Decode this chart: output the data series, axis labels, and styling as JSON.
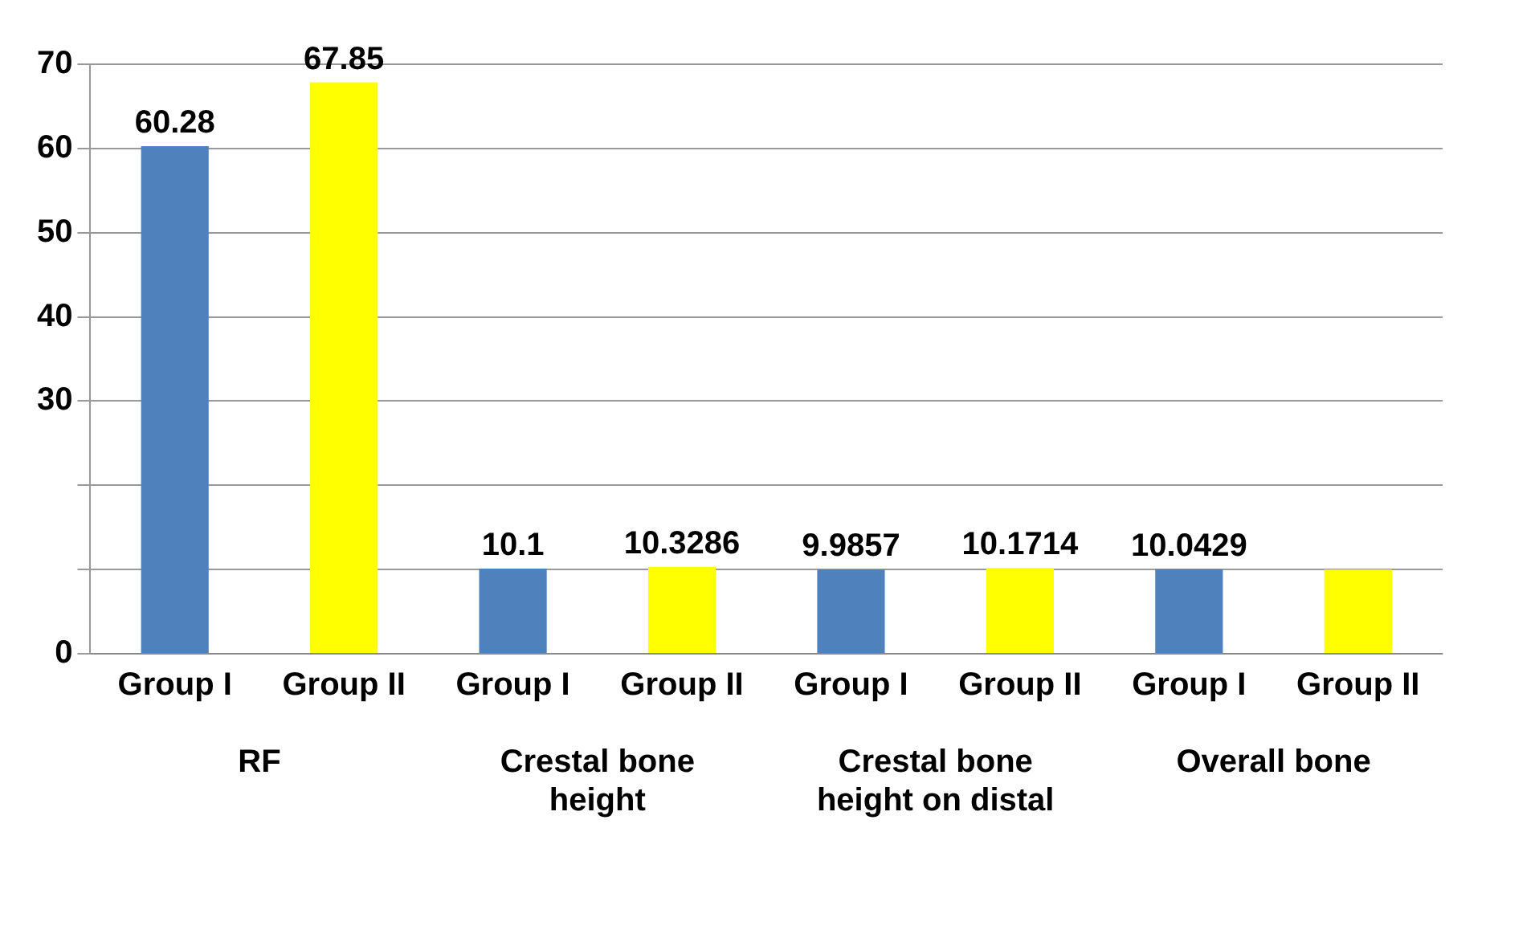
{
  "chart_data": {
    "type": "bar",
    "categories": [
      "RF",
      "Crestal bone height",
      "Crestal bone height on distal",
      "Overall bone"
    ],
    "series": [
      {
        "name": "Group I",
        "color": "#4f81bd",
        "values": [
          60.28,
          10.1,
          9.9857,
          10.0429
        ],
        "value_labels": [
          "60.28",
          "10.1",
          "9.9857",
          "10.0429"
        ]
      },
      {
        "name": "Group II",
        "color": "#ffff00",
        "values": [
          67.85,
          10.3286,
          10.1714,
          10
        ],
        "value_labels": [
          "67.85",
          "10.3286",
          "10.1714",
          null
        ]
      }
    ],
    "ylim": [
      0,
      70
    ],
    "yticks": [
      0,
      {
        "value": 10,
        "label": null
      },
      {
        "value": 20,
        "label": null
      },
      30,
      40,
      50,
      60,
      70
    ],
    "grid": "y",
    "legend": false
  }
}
